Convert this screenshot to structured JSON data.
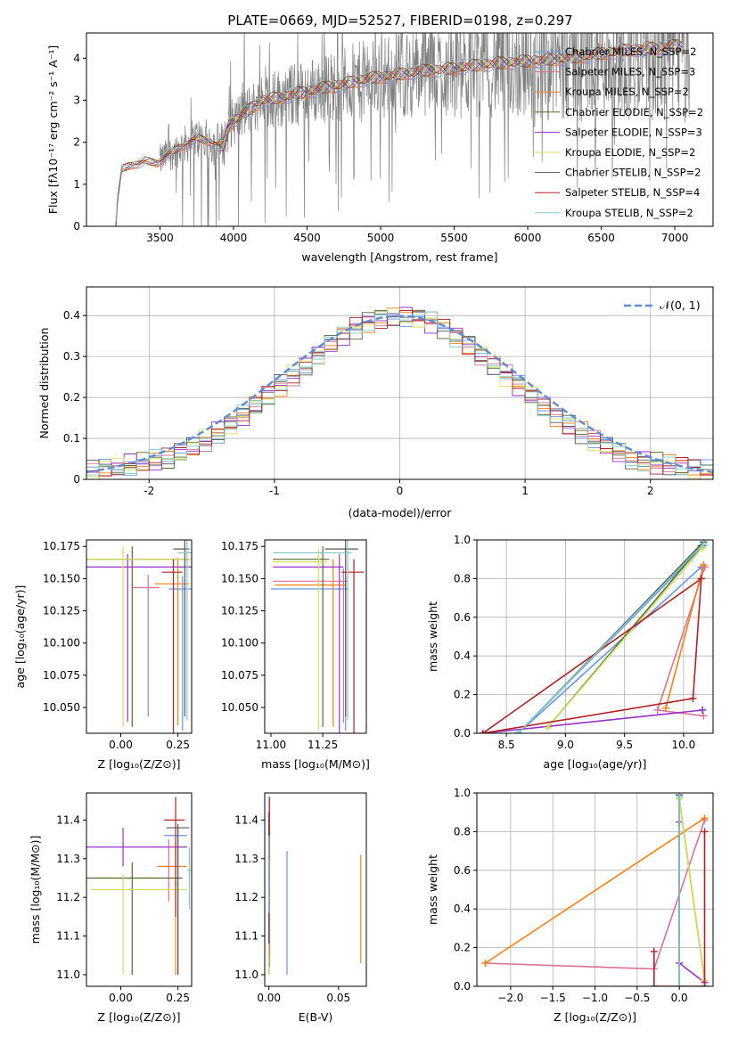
{
  "figure": {
    "title": "PLATE=0669, MJD=52527, FIBERID=0198, z=0.297"
  },
  "legend_entries": [
    {
      "label": "Chabrier MILES, N_SSP=2",
      "color": "#6495ed"
    },
    {
      "label": "Salpeter MILES, N_SSP=3",
      "color": "#db7093"
    },
    {
      "label": "Kroupa MILES, N_SSP=2",
      "color": "#ff7f0e"
    },
    {
      "label": "Chabrier ELODIE, N_SSP=2",
      "color": "#556b2f"
    },
    {
      "label": "Salpeter ELODIE, N_SSP=3",
      "color": "#9932cc"
    },
    {
      "label": "Kroupa ELODIE, N_SSP=2",
      "color": "#d4e157"
    },
    {
      "label": "Chabrier STELIB, N_SSP=2",
      "color": "#555555"
    },
    {
      "label": "Salpeter STELIB, N_SSP=4",
      "color": "#b22222"
    },
    {
      "label": "Kroupa STELIB, N_SSP=2",
      "color": "#80cbc4"
    }
  ],
  "chart_data": [
    {
      "id": "spectrum",
      "type": "line",
      "xlabel": "wavelength [Angstrom, rest frame]",
      "ylabel": "Flux [f_λ 10^-17 erg cm^-2 s^-1 A^-1]",
      "xlim": [
        3000,
        7260
      ],
      "ylim": [
        0,
        4.6
      ],
      "xticks": [
        3500,
        4000,
        4500,
        5000,
        5500,
        6000,
        6500,
        7000
      ],
      "yticks": [
        0,
        1,
        2,
        3,
        4
      ],
      "data_color": "#808080",
      "model_knots": {
        "x": [
          3200,
          3210,
          3240,
          3300,
          3400,
          3480,
          3550,
          3650,
          3750,
          3850,
          3930,
          3970,
          4000,
          4100,
          4200,
          4300,
          4500,
          4700,
          4900,
          5100,
          5300,
          5500,
          5700,
          5900,
          6100,
          6300,
          6500,
          6700,
          6900,
          7050
        ],
        "y": [
          0,
          0.6,
          1.35,
          1.45,
          1.55,
          1.5,
          1.7,
          1.9,
          2.1,
          2.0,
          1.9,
          2.4,
          2.5,
          2.75,
          3.0,
          3.05,
          3.2,
          3.35,
          3.5,
          3.6,
          3.7,
          3.75,
          3.85,
          3.9,
          3.95,
          4.0,
          4.1,
          4.2,
          4.25,
          4.3
        ]
      },
      "legend": "top-right",
      "grid": false
    },
    {
      "id": "residuals",
      "type": "histogram",
      "xlabel": "(data-model)/error",
      "ylabel": "Normed distribution",
      "xlim": [
        -2.5,
        2.5
      ],
      "ylim": [
        0,
        0.47
      ],
      "xticks": [
        -2,
        -1,
        0,
        1,
        2
      ],
      "yticks": [
        0.0,
        0.1,
        0.2,
        0.3,
        0.4
      ],
      "bin_edges_start": -2.5,
      "bin_width": 0.1,
      "base_values": [
        0.02,
        0.025,
        0.03,
        0.035,
        0.04,
        0.045,
        0.05,
        0.065,
        0.08,
        0.095,
        0.115,
        0.135,
        0.155,
        0.18,
        0.205,
        0.23,
        0.255,
        0.28,
        0.305,
        0.33,
        0.35,
        0.37,
        0.385,
        0.395,
        0.4,
        0.4,
        0.395,
        0.385,
        0.37,
        0.35,
        0.33,
        0.305,
        0.28,
        0.255,
        0.23,
        0.205,
        0.18,
        0.155,
        0.135,
        0.115,
        0.095,
        0.08,
        0.065,
        0.05,
        0.045,
        0.04,
        0.035,
        0.03,
        0.025,
        0.02
      ],
      "gaussian_label": "𝒩(0, 1)",
      "gaussian_color": "#5b8bd9",
      "legend": "top-right",
      "grid": true
    },
    {
      "id": "age_vs_Z",
      "type": "errorbar",
      "xlabel": "Z [log10(Z/Z⊙)]",
      "ylabel": "age  [log10(age/yr)]",
      "xlim": [
        -0.15,
        0.31
      ],
      "ylim": [
        10.03,
        10.18
      ],
      "xticks": [
        0.0,
        0.25
      ],
      "xticklabels": [
        "0.00",
        "0.25"
      ],
      "yticks": [
        10.05,
        10.075,
        10.1,
        10.125,
        10.15,
        10.175
      ],
      "yticklabels": [
        "10.050",
        "10.075",
        "10.100",
        "10.125",
        "10.150",
        "10.175"
      ],
      "points": [
        {
          "x": 0.27,
          "xerr": [
            0.06,
            0.04
          ],
          "y": 10.142,
          "yerr": [
            0.11,
            0.01
          ],
          "s": 0
        },
        {
          "x": 0.12,
          "xerr": [
            0.07,
            0.05
          ],
          "y": 10.143,
          "yerr": [
            0.1,
            0.01
          ],
          "s": 1
        },
        {
          "x": 0.25,
          "xerr": [
            0.1,
            0.05
          ],
          "y": 10.146,
          "yerr": [
            0.11,
            0.02
          ],
          "s": 2
        },
        {
          "x": 0.05,
          "xerr": [
            0.2,
            0.25
          ],
          "y": 10.165,
          "yerr": [
            0.13,
            0.01
          ],
          "s": 3
        },
        {
          "x": 0.03,
          "xerr": [
            0.18,
            0.28
          ],
          "y": 10.159,
          "yerr": [
            0.12,
            0.01
          ],
          "s": 4
        },
        {
          "x": 0.01,
          "xerr": [
            0.16,
            0.3
          ],
          "y": 10.165,
          "yerr": [
            0.13,
            0.01
          ],
          "s": 5
        },
        {
          "x": 0.28,
          "xerr": [
            0.05,
            0.02
          ],
          "y": 10.173,
          "yerr": [
            0.13,
            0.01
          ],
          "s": 6
        },
        {
          "x": 0.23,
          "xerr": [
            0.05,
            0.04
          ],
          "y": 10.155,
          "yerr": [
            0.13,
            0.01
          ],
          "s": 7
        },
        {
          "x": 0.29,
          "xerr": [
            0.04,
            0.02
          ],
          "y": 10.17,
          "yerr": [
            0.13,
            0.01
          ],
          "s": 8
        }
      ]
    },
    {
      "id": "age_vs_mass",
      "type": "errorbar",
      "xlabel": "mass [log10(M/M⊙)]",
      "xlim": [
        10.97,
        11.46
      ],
      "ylim": [
        10.03,
        10.18
      ],
      "xticks": [
        11.0,
        11.25
      ],
      "xticklabels": [
        "11.00",
        "11.25"
      ],
      "yticks": [
        10.05,
        10.075,
        10.1,
        10.125,
        10.15,
        10.175
      ],
      "yticklabels": [
        "10.050",
        "10.075",
        "10.100",
        "10.125",
        "10.150",
        "10.175"
      ],
      "points": [
        {
          "x": 11.36,
          "xerr": [
            0.36,
            0.01
          ],
          "y": 10.142,
          "yerr": [
            0.11,
            0.01
          ],
          "s": 0
        },
        {
          "x": 11.35,
          "xerr": [
            0.34,
            0.02
          ],
          "y": 10.148,
          "yerr": [
            0.11,
            0.01
          ],
          "s": 1
        },
        {
          "x": 11.3,
          "xerr": [
            0.28,
            0.06
          ],
          "y": 10.145,
          "yerr": [
            0.11,
            0.02
          ],
          "s": 2
        },
        {
          "x": 11.25,
          "xerr": [
            0.24,
            0.03
          ],
          "y": 10.165,
          "yerr": [
            0.13,
            0.01
          ],
          "s": 3
        },
        {
          "x": 11.33,
          "xerr": [
            0.32,
            0.02
          ],
          "y": 10.159,
          "yerr": [
            0.13,
            0.01
          ],
          "s": 4
        },
        {
          "x": 11.23,
          "xerr": [
            0.22,
            0.04
          ],
          "y": 10.163,
          "yerr": [
            0.13,
            0.01
          ],
          "s": 5
        },
        {
          "x": 11.36,
          "xerr": [
            0.1,
            0.06
          ],
          "y": 10.173,
          "yerr": [
            0.13,
            0.01
          ],
          "s": 6
        },
        {
          "x": 11.4,
          "xerr": [
            0.06,
            0.05
          ],
          "y": 10.155,
          "yerr": [
            0.13,
            0.01
          ],
          "s": 7
        },
        {
          "x": 11.37,
          "xerr": [
            0.36,
            0.02
          ],
          "y": 10.17,
          "yerr": [
            0.13,
            0.01
          ],
          "s": 8
        }
      ]
    },
    {
      "id": "weight_vs_age",
      "type": "line",
      "xlabel": "age  [log10(age/yr)]",
      "ylabel": "mass weight",
      "xlim": [
        8.25,
        10.25
      ],
      "ylim": [
        0,
        1
      ],
      "xticks": [
        8.5,
        9.0,
        9.5,
        10.0
      ],
      "xticklabels": [
        "8.5",
        "9.0",
        "9.5",
        "10.0"
      ],
      "yticks": [
        0.0,
        0.2,
        0.4,
        0.6,
        0.8,
        1.0
      ],
      "yticklabels": [
        "0.0",
        "0.2",
        "0.4",
        "0.6",
        "0.8",
        "1.0"
      ],
      "grid": true,
      "series": [
        {
          "s": 0,
          "x": [
            10.17,
            8.6,
            10.15
          ],
          "y": [
            0.97,
            0.0,
            0.86
          ]
        },
        {
          "s": 1,
          "x": [
            10.17,
            9.78,
            10.18
          ],
          "y": [
            0.09,
            0.12,
            0.86
          ]
        },
        {
          "s": 2,
          "x": [
            10.17,
            9.85,
            10.17
          ],
          "y": [
            0.87,
            0.13,
            0.87
          ]
        },
        {
          "s": 3,
          "x": [
            10.15,
            8.85,
            10.15
          ],
          "y": [
            0.97,
            0.03,
            0.97
          ]
        },
        {
          "s": 4,
          "x": [
            10.16,
            8.3,
            10.16
          ],
          "y": [
            0.12,
            0.0,
            0.12
          ]
        },
        {
          "s": 5,
          "x": [
            10.16,
            8.85,
            10.16
          ],
          "y": [
            0.96,
            0.03,
            0.96
          ]
        },
        {
          "s": 6,
          "x": [
            10.17,
            8.6,
            10.17
          ],
          "y": [
            0.99,
            0.0,
            0.99
          ]
        },
        {
          "s": 7,
          "x": [
            10.15,
            8.3,
            10.08,
            10.15
          ],
          "y": [
            0.8,
            0.0,
            0.18,
            0.8
          ]
        },
        {
          "s": 8,
          "x": [
            10.17,
            8.6,
            10.17
          ],
          "y": [
            0.98,
            0.0,
            0.98
          ]
        }
      ]
    },
    {
      "id": "mass_vs_Z",
      "type": "errorbar",
      "xlabel": "Z [log10(Z/Z⊙)]",
      "ylabel": "mass [log10(M/M⊙)]",
      "xlim": [
        -0.15,
        0.31
      ],
      "ylim": [
        10.97,
        11.47
      ],
      "xticks": [
        0.0,
        0.25
      ],
      "xticklabels": [
        "0.00",
        "0.25"
      ],
      "yticks": [
        11.0,
        11.1,
        11.2,
        11.3,
        11.4
      ],
      "yticklabels": [
        "11.0",
        "11.1",
        "11.2",
        "11.3",
        "11.4"
      ],
      "points": [
        {
          "x": 0.25,
          "xerr": [
            0.06,
            0.04
          ],
          "y": 11.36,
          "yerr": [
            0.36,
            0.02
          ],
          "s": 0
        },
        {
          "x": 0.21,
          "xerr": [
            0.05,
            0.05
          ],
          "y": 11.28,
          "yerr": [
            0.09,
            0.07
          ],
          "s": 1
        },
        {
          "x": 0.24,
          "xerr": [
            0.07,
            0.05
          ],
          "y": 11.28,
          "yerr": [
            0.28,
            0.06
          ],
          "s": 2
        },
        {
          "x": 0.05,
          "xerr": [
            0.2,
            0.22
          ],
          "y": 11.25,
          "yerr": [
            0.25,
            0.04
          ],
          "s": 3
        },
        {
          "x": 0.01,
          "xerr": [
            0.16,
            0.28
          ],
          "y": 11.33,
          "yerr": [
            0.05,
            0.05
          ],
          "s": 4
        },
        {
          "x": 0.01,
          "xerr": [
            0.14,
            0.28
          ],
          "y": 11.22,
          "yerr": [
            0.22,
            0.04
          ],
          "s": 5
        },
        {
          "x": 0.25,
          "xerr": [
            0.05,
            0.05
          ],
          "y": 11.38,
          "yerr": [
            0.38,
            0.01
          ],
          "s": 6
        },
        {
          "x": 0.24,
          "xerr": [
            0.05,
            0.04
          ],
          "y": 11.4,
          "yerr": [
            0.25,
            0.06
          ],
          "s": 7
        },
        {
          "x": 0.3,
          "xerr": [
            0.01,
            0.01
          ],
          "y": 11.27,
          "yerr": [
            0.1,
            0.06
          ],
          "s": 8
        }
      ]
    },
    {
      "id": "mass_vs_ebv",
      "type": "errorbar",
      "xlabel": "E(B-V)",
      "xlim": [
        -0.003,
        0.07
      ],
      "ylim": [
        10.97,
        11.47
      ],
      "xticks": [
        0.0,
        0.05
      ],
      "xticklabels": [
        "0.00",
        "0.05"
      ],
      "yticks": [
        11.0,
        11.1,
        11.2,
        11.3,
        11.4
      ],
      "yticklabels": [
        "11.0",
        "11.1",
        "11.2",
        "11.3",
        "11.4"
      ],
      "points": [
        {
          "x": 0.013,
          "xerr": [
            0,
            0
          ],
          "y": 11.16,
          "yerr": [
            0.16,
            0.16
          ],
          "s": 0
        },
        {
          "x": 0.0005,
          "xerr": [
            0,
            0
          ],
          "y": 11.29,
          "yerr": [
            0.27,
            0.17
          ],
          "s": 1
        },
        {
          "x": 0.066,
          "xerr": [
            0,
            0
          ],
          "y": 11.17,
          "yerr": [
            0.14,
            0.14
          ],
          "s": 2
        },
        {
          "x": 0.0,
          "xerr": [
            0,
            0
          ],
          "y": 11.25,
          "yerr": [
            0.25,
            0.15
          ],
          "s": 3
        },
        {
          "x": 0.0002,
          "xerr": [
            0,
            0
          ],
          "y": 11.33,
          "yerr": [
            0.28,
            0.05
          ],
          "s": 4
        },
        {
          "x": 0.0,
          "xerr": [
            0,
            0
          ],
          "y": 11.15,
          "yerr": [
            0.15,
            0.1
          ],
          "s": 5
        },
        {
          "x": 0.0,
          "xerr": [
            0,
            0
          ],
          "y": 11.38,
          "yerr": [
            0.3,
            0.04
          ],
          "s": 6
        },
        {
          "x": 0.0003,
          "xerr": [
            0,
            0
          ],
          "y": 11.4,
          "yerr": [
            0.1,
            0.06
          ],
          "s": 7
        },
        {
          "x": 0.0001,
          "xerr": [
            0,
            0
          ],
          "y": 11.3,
          "yerr": [
            0.14,
            0.06
          ],
          "s": 8
        }
      ]
    },
    {
      "id": "weight_vs_Z",
      "type": "line",
      "xlabel": "Z [log10(Z/Z⊙)]",
      "ylabel": "mass weight",
      "xlim": [
        -2.4,
        0.4
      ],
      "ylim": [
        0,
        1
      ],
      "xticks": [
        -2.0,
        -1.5,
        -1.0,
        -0.5,
        0.0
      ],
      "xticklabels": [
        "−2.0",
        "−1.5",
        "−1.0",
        "−0.5",
        "0.0"
      ],
      "yticks": [
        0.0,
        0.2,
        0.4,
        0.6,
        0.8,
        1.0
      ],
      "yticklabels": [
        "0.0",
        "0.2",
        "0.4",
        "0.6",
        "0.8",
        "1.0"
      ],
      "grid": true,
      "series": [
        {
          "s": 0,
          "x": [
            0.0,
            0.0
          ],
          "y": [
            0.0,
            0.99
          ]
        },
        {
          "s": 1,
          "x": [
            -2.3,
            -0.3,
            0.3
          ],
          "y": [
            0.12,
            0.09,
            0.86
          ]
        },
        {
          "s": 2,
          "x": [
            -2.3,
            0.3
          ],
          "y": [
            0.12,
            0.87
          ]
        },
        {
          "s": 3,
          "x": [
            0.3,
            0.0
          ],
          "y": [
            0.03,
            0.97
          ]
        },
        {
          "s": 4,
          "x": [
            0.3,
            0.0,
            0.0
          ],
          "y": [
            0.02,
            0.12,
            0.85
          ]
        },
        {
          "s": 5,
          "x": [
            0.0,
            0.3
          ],
          "y": [
            0.97,
            0.03
          ]
        },
        {
          "s": 6,
          "x": [
            0.0,
            0.0
          ],
          "y": [
            0.0,
            0.99
          ]
        },
        {
          "s": 7,
          "x": [
            -0.3,
            -0.3,
            0.3,
            0.3
          ],
          "y": [
            0.18,
            0.0,
            0.0,
            0.8
          ]
        },
        {
          "s": 8,
          "x": [
            0.0,
            0.0
          ],
          "y": [
            0.0,
            0.98
          ]
        }
      ]
    }
  ]
}
